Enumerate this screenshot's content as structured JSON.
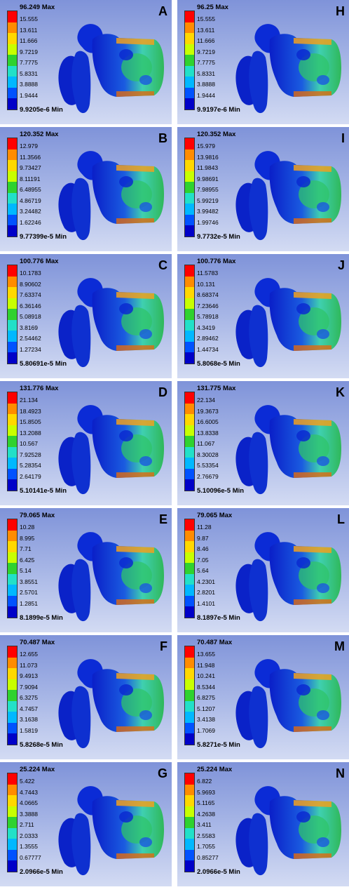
{
  "colors": [
    "#ff0000",
    "#ff8c00",
    "#ffd800",
    "#c8ff00",
    "#2fd22f",
    "#22e0c8",
    "#00b8ff",
    "#0052ff",
    "#0000c8"
  ],
  "panels": [
    {
      "letter": "A",
      "max": "96.249 Max",
      "ticks": [
        "15.555",
        "13.611",
        "11.666",
        "9.7219",
        "7.7775",
        "5.8331",
        "3.8888",
        "1.9444"
      ],
      "min": "9.9205e-6 Min"
    },
    {
      "letter": "H",
      "max": "96.25 Max",
      "ticks": [
        "15.555",
        "13.611",
        "11.666",
        "9.7219",
        "7.7775",
        "5.8331",
        "3.8888",
        "1.9444"
      ],
      "min": "9.9197e-6 Min"
    },
    {
      "letter": "B",
      "max": "120.352 Max",
      "ticks": [
        "12.979",
        "11.3566",
        "9.73427",
        "8.11191",
        "6.48955",
        "4.86719",
        "3.24482",
        "1.62246"
      ],
      "min": "9.77399e-5 Min"
    },
    {
      "letter": "I",
      "max": "120.352 Max",
      "ticks": [
        "15.979",
        "13.9816",
        "11.9843",
        "9.98691",
        "7.98955",
        "5.99219",
        "3.99482",
        "1.99746"
      ],
      "min": "9.7732e-5 Min"
    },
    {
      "letter": "C",
      "max": "100.776 Max",
      "ticks": [
        "10.1783",
        "8.90602",
        "7.63374",
        "6.36146",
        "5.08918",
        "3.8169",
        "2.54462",
        "1.27234"
      ],
      "min": "5.80691e-5 Min"
    },
    {
      "letter": "J",
      "max": "100.776 Max",
      "ticks": [
        "11.5783",
        "10.131",
        "8.68374",
        "7.23646",
        "5.78918",
        "4.3419",
        "2.89462",
        "1.44734"
      ],
      "min": "5.8068e-5 Min"
    },
    {
      "letter": "D",
      "max": "131.776 Max",
      "ticks": [
        "21.134",
        "18.4923",
        "15.8505",
        "13.2088",
        "10.567",
        "7.92528",
        "5.28354",
        "2.64179"
      ],
      "min": "5.10141e-5 Min"
    },
    {
      "letter": "K",
      "max": "131.775 Max",
      "ticks": [
        "22.134",
        "19.3673",
        "16.6005",
        "13.8338",
        "11.067",
        "8.30028",
        "5.53354",
        "2.76679"
      ],
      "min": "5.10096e-5 Min"
    },
    {
      "letter": "E",
      "max": "79.065 Max",
      "ticks": [
        "10.28",
        "8.995",
        "7.71",
        "6.425",
        "5.14",
        "3.8551",
        "2.5701",
        "1.2851"
      ],
      "min": "8.1899e-5 Min"
    },
    {
      "letter": "L",
      "max": "79.065 Max",
      "ticks": [
        "11.28",
        "9.87",
        "8.46",
        "7.05",
        "5.64",
        "4.2301",
        "2.8201",
        "1.4101"
      ],
      "min": "8.1897e-5 Min"
    },
    {
      "letter": "F",
      "max": "70.487 Max",
      "ticks": [
        "12.655",
        "11.073",
        "9.4913",
        "7.9094",
        "6.3275",
        "4.7457",
        "3.1638",
        "1.5819"
      ],
      "min": "5.8268e-5 Min"
    },
    {
      "letter": "M",
      "max": "70.487 Max",
      "ticks": [
        "13.655",
        "11.948",
        "10.241",
        "8.5344",
        "6.8275",
        "5.1207",
        "3.4138",
        "1.7069"
      ],
      "min": "5.8271e-5 Min"
    },
    {
      "letter": "G",
      "max": "25.224 Max",
      "ticks": [
        "5.422",
        "4.7443",
        "4.0665",
        "3.3888",
        "2.711",
        "2.0333",
        "1.3555",
        "0.67777"
      ],
      "min": "2.0966e-5 Min"
    },
    {
      "letter": "N",
      "max": "25.224 Max",
      "ticks": [
        "6.822",
        "5.9693",
        "5.1165",
        "4.2638",
        "3.411",
        "2.5583",
        "1.7055",
        "0.85277"
      ],
      "min": "2.0966e-5 Min"
    }
  ]
}
